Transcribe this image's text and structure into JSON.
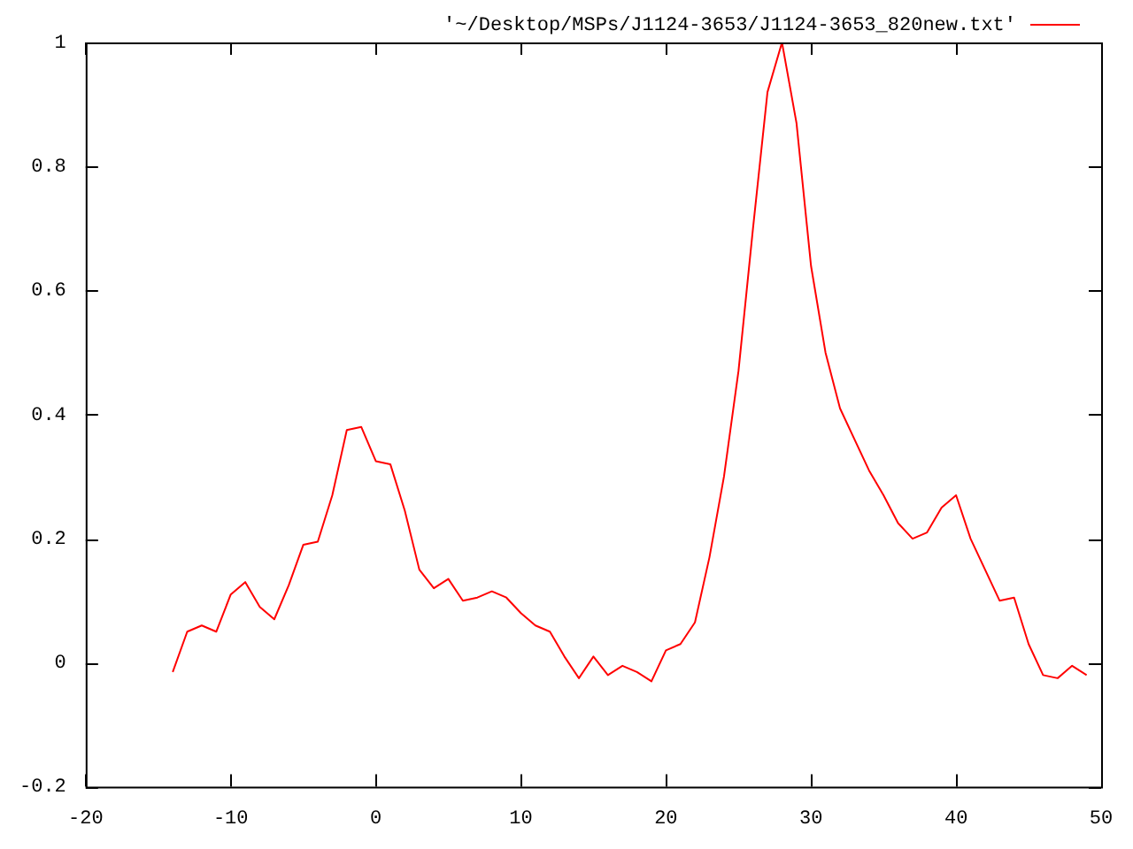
{
  "chart_data": {
    "type": "line",
    "x": [
      -14,
      -13,
      -12,
      -11,
      -10,
      -9,
      -8,
      -7,
      -6,
      -5,
      -4,
      -3,
      -2,
      -1,
      0,
      1,
      2,
      3,
      4,
      5,
      6,
      7,
      8,
      9,
      10,
      11,
      12,
      13,
      14,
      15,
      16,
      17,
      18,
      19,
      20,
      21,
      22,
      23,
      24,
      25,
      26,
      27,
      28,
      29,
      30,
      31,
      32,
      33,
      34,
      35,
      36,
      37,
      38,
      39,
      40,
      41,
      42,
      43,
      44,
      45,
      46,
      47,
      48,
      49
    ],
    "series": [
      {
        "name": "'~/Desktop/MSPs/J1124-3653/J1124-3653_820new.txt'",
        "color": "#ff0000",
        "values": [
          -0.015,
          0.05,
          0.06,
          0.05,
          0.11,
          0.13,
          0.09,
          0.07,
          0.125,
          0.19,
          0.195,
          0.27,
          0.375,
          0.38,
          0.325,
          0.32,
          0.245,
          0.15,
          0.12,
          0.135,
          0.1,
          0.105,
          0.115,
          0.105,
          0.08,
          0.06,
          0.05,
          0.01,
          -0.025,
          0.01,
          -0.02,
          -0.005,
          -0.015,
          -0.03,
          0.02,
          0.03,
          0.065,
          0.17,
          0.3,
          0.47,
          0.7,
          0.92,
          1.0,
          0.87,
          0.64,
          0.5,
          0.41,
          0.36,
          0.31,
          0.27,
          0.225,
          0.2,
          0.21,
          0.25,
          0.27,
          0.2,
          0.15,
          0.1,
          0.105,
          0.03,
          -0.02,
          -0.025,
          -0.005,
          -0.02
        ]
      }
    ],
    "xlim": [
      -20,
      50
    ],
    "xticks": [
      -20,
      -10,
      0,
      10,
      20,
      30,
      40,
      50
    ],
    "ylim": [
      -0.2,
      1
    ],
    "yticks": [
      -0.2,
      0,
      0.2,
      0.4,
      0.6,
      0.8,
      1
    ],
    "legend": "top right"
  }
}
